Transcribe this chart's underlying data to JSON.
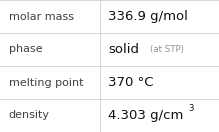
{
  "rows": [
    {
      "label": "molar mass",
      "value": "336.9 g/mol",
      "superscript": null,
      "small_text": null
    },
    {
      "label": "phase",
      "value": "solid",
      "superscript": null,
      "small_text": "(at STP)"
    },
    {
      "label": "melting point",
      "value": "370 °C",
      "superscript": null,
      "small_text": null
    },
    {
      "label": "density",
      "value": "4.303 g/cm",
      "superscript": "3",
      "small_text": null
    }
  ],
  "bg_color": "#ffffff",
  "border_color": "#d0d0d0",
  "label_color": "#404040",
  "value_color": "#101010",
  "small_text_color": "#909090",
  "label_fontsize": 8.0,
  "value_fontsize": 9.5,
  "small_fontsize": 6.2,
  "super_fontsize": 6.2,
  "col_split": 0.455,
  "figwidth": 2.19,
  "figheight": 1.32,
  "dpi": 100
}
